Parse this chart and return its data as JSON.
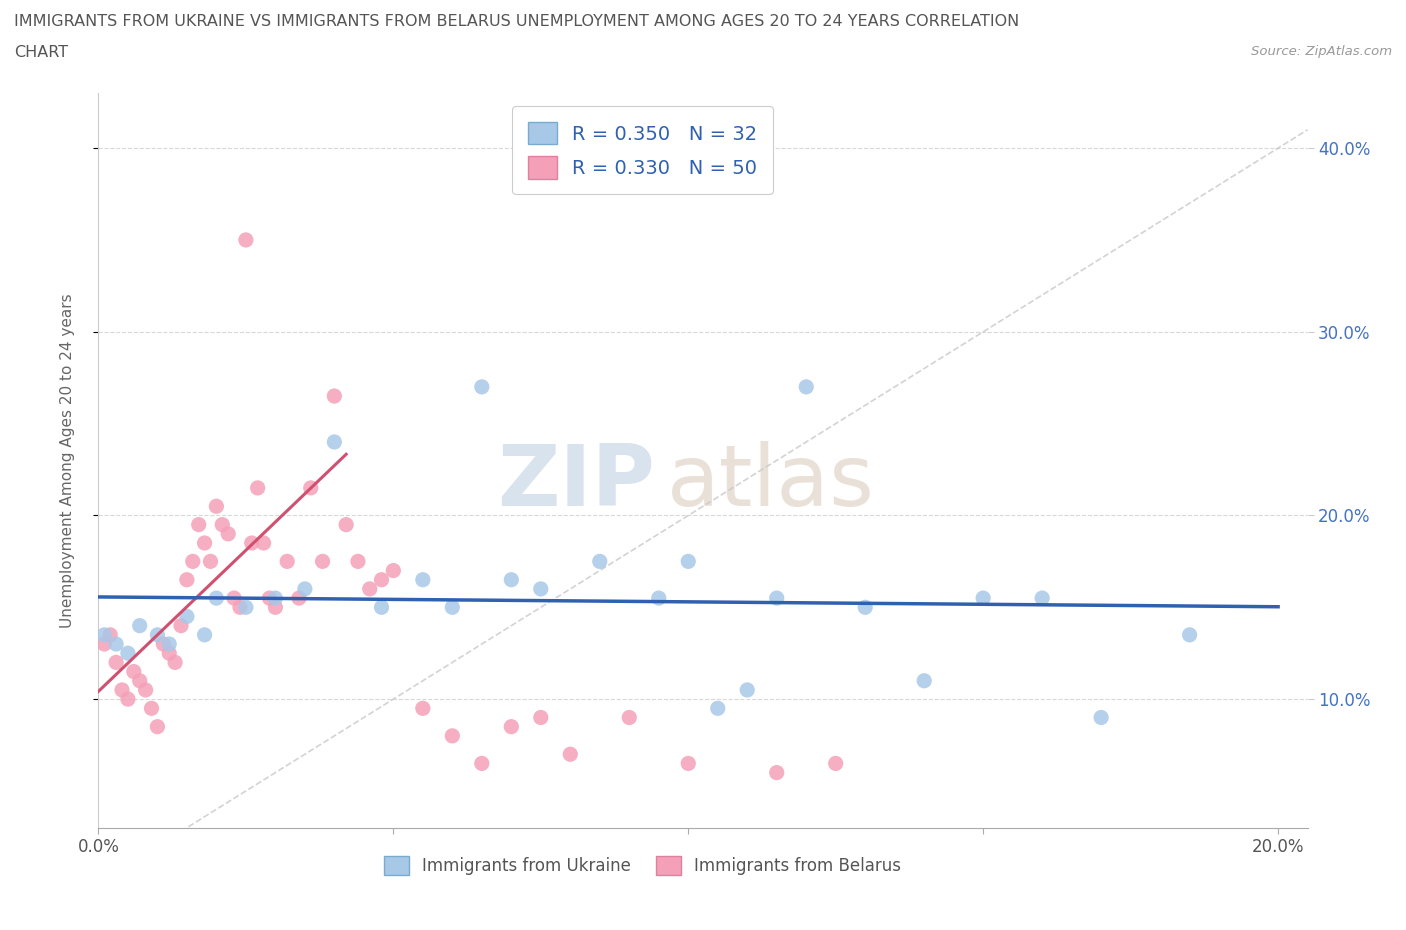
{
  "title_line1": "IMMIGRANTS FROM UKRAINE VS IMMIGRANTS FROM BELARUS UNEMPLOYMENT AMONG AGES 20 TO 24 YEARS CORRELATION",
  "title_line2": "CHART",
  "source": "Source: ZipAtlas.com",
  "ylabel": "Unemployment Among Ages 20 to 24 years",
  "xlabel_ukraine": "Immigrants from Ukraine",
  "xlabel_belarus": "Immigrants from Belarus",
  "xlim": [
    0.0,
    0.205
  ],
  "ylim": [
    0.03,
    0.43
  ],
  "yticks": [
    0.1,
    0.2,
    0.3,
    0.4
  ],
  "ytick_labels": [
    "10.0%",
    "20.0%",
    "30.0%",
    "40.0%"
  ],
  "xticks": [
    0.0,
    0.05,
    0.1,
    0.15,
    0.2
  ],
  "xtick_labels": [
    "0.0%",
    "",
    "",
    "",
    "20.0%"
  ],
  "ukraine_color": "#a8c8e8",
  "belarus_color": "#f4a0b8",
  "ukraine_line_color": "#3060b0",
  "belarus_line_color": "#d05070",
  "R_ukraine": 0.35,
  "N_ukraine": 32,
  "R_belarus": 0.33,
  "N_belarus": 50,
  "watermark_zip": "ZIP",
  "watermark_atlas": "atlas",
  "ukraine_scatter_x": [
    0.001,
    0.003,
    0.005,
    0.007,
    0.01,
    0.012,
    0.015,
    0.018,
    0.02,
    0.025,
    0.03,
    0.035,
    0.04,
    0.048,
    0.055,
    0.06,
    0.065,
    0.07,
    0.075,
    0.085,
    0.095,
    0.1,
    0.105,
    0.11,
    0.115,
    0.12,
    0.13,
    0.14,
    0.15,
    0.16,
    0.17,
    0.185
  ],
  "ukraine_scatter_y": [
    0.135,
    0.13,
    0.125,
    0.14,
    0.135,
    0.13,
    0.145,
    0.135,
    0.155,
    0.15,
    0.155,
    0.16,
    0.24,
    0.15,
    0.165,
    0.15,
    0.27,
    0.165,
    0.16,
    0.175,
    0.155,
    0.175,
    0.095,
    0.105,
    0.155,
    0.27,
    0.15,
    0.11,
    0.155,
    0.155,
    0.09,
    0.135
  ],
  "belarus_scatter_x": [
    0.001,
    0.002,
    0.003,
    0.004,
    0.005,
    0.006,
    0.007,
    0.008,
    0.009,
    0.01,
    0.011,
    0.012,
    0.013,
    0.014,
    0.015,
    0.016,
    0.017,
    0.018,
    0.019,
    0.02,
    0.021,
    0.022,
    0.023,
    0.024,
    0.025,
    0.026,
    0.027,
    0.028,
    0.029,
    0.03,
    0.032,
    0.034,
    0.036,
    0.038,
    0.04,
    0.042,
    0.044,
    0.046,
    0.048,
    0.05,
    0.055,
    0.06,
    0.065,
    0.07,
    0.075,
    0.08,
    0.09,
    0.1,
    0.115,
    0.125
  ],
  "belarus_scatter_y": [
    0.13,
    0.135,
    0.12,
    0.105,
    0.1,
    0.115,
    0.11,
    0.105,
    0.095,
    0.085,
    0.13,
    0.125,
    0.12,
    0.14,
    0.165,
    0.175,
    0.195,
    0.185,
    0.175,
    0.205,
    0.195,
    0.19,
    0.155,
    0.15,
    0.35,
    0.185,
    0.215,
    0.185,
    0.155,
    0.15,
    0.175,
    0.155,
    0.215,
    0.175,
    0.265,
    0.195,
    0.175,
    0.16,
    0.165,
    0.17,
    0.095,
    0.08,
    0.065,
    0.085,
    0.09,
    0.07,
    0.09,
    0.065,
    0.06,
    0.065
  ]
}
